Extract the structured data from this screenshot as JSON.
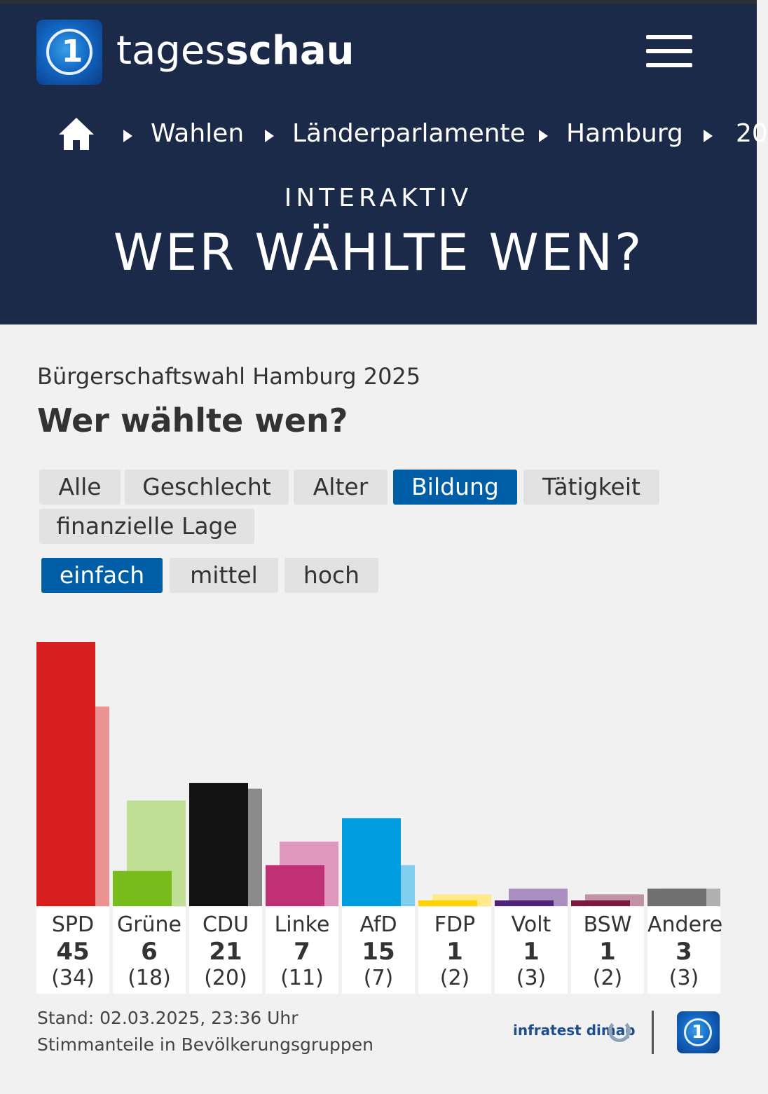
{
  "header": {
    "logo_glyph": "1",
    "brand_light": "tages",
    "brand_bold": "schau",
    "menu_icon": "hamburger-menu-icon",
    "breadcrumb": [
      "Wahlen",
      "Länderparlamente",
      "Hamburg",
      "20"
    ],
    "kicker": "INTERAKTIV",
    "headline": "WER WÄHLTE WEN?"
  },
  "section": {
    "subtitle": "Bürgerschaftswahl Hamburg 2025",
    "title": "Wer wählte wen?"
  },
  "filters": {
    "categories": [
      "Alle",
      "Geschlecht",
      "Alter",
      "Bildung",
      "Tätigkeit",
      "finanzielle Lage"
    ],
    "active_category": "Bildung",
    "levels": [
      "einfach",
      "mittel",
      "hoch"
    ],
    "active_level": "einfach"
  },
  "chart_data": {
    "type": "bar",
    "categories": [
      "SPD",
      "Grüne",
      "CDU",
      "Linke",
      "AfD",
      "FDP",
      "Volt",
      "BSW",
      "Andere"
    ],
    "values": [
      45,
      6,
      21,
      7,
      15,
      1,
      1,
      1,
      3
    ],
    "previous": [
      34,
      18,
      20,
      11,
      7,
      2,
      3,
      2,
      3
    ],
    "colors": [
      "#d71f1f",
      "#78bc1b",
      "#121212",
      "#bf3075",
      "#009ee0",
      "#ffd200",
      "#502379",
      "#7a1a3e",
      "#707070"
    ],
    "prev_colors": [
      "#eb9393",
      "#bfe094",
      "#8a8a8a",
      "#df98bd",
      "#80cff0",
      "#ffe98a",
      "#a98fc0",
      "#bf92a5",
      "#b0b0b0"
    ],
    "ylim": [
      0,
      45
    ]
  },
  "footer": {
    "stand": "Stand: 02.03.2025, 23:36 Uhr",
    "note": "Stimmanteile in Bevölkerungsgruppen",
    "source": "infratest dimap",
    "ard_glyph": "1"
  }
}
